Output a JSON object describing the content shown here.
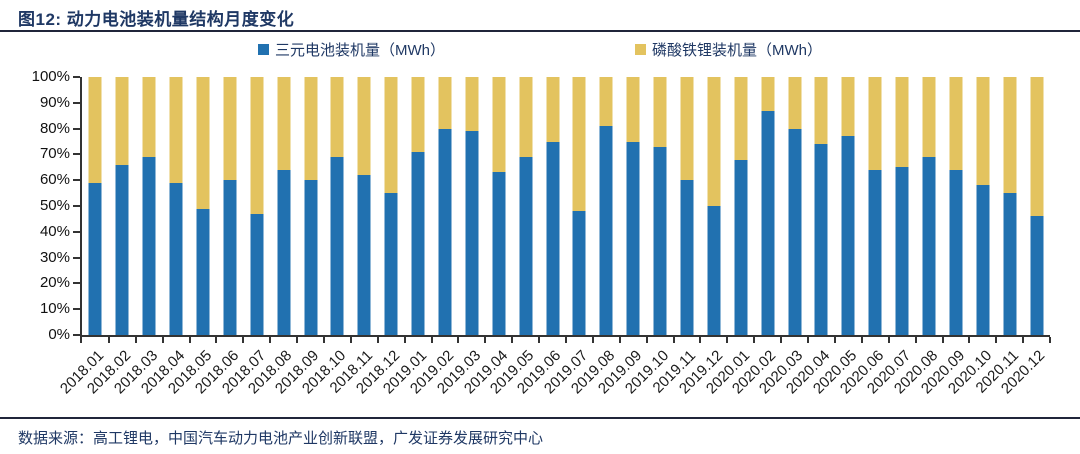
{
  "title": "图12:  动力电池装机量结构月度变化",
  "source": "数据来源：高工锂电，中国汽车动力电池产业创新联盟，广发证券发展研究中心",
  "colors": {
    "ternary_blue": "#2171B0",
    "lfp_yellow": "#E3C35F",
    "navy_text": "#1F3864",
    "axis": "#333333"
  },
  "legend": [
    {
      "label": "三元电池装机量（MWh）",
      "color": "#2171B0"
    },
    {
      "label": "磷酸铁锂装机量（MWh）",
      "color": "#E3C35F"
    }
  ],
  "chart_data": {
    "type": "bar",
    "subtype": "stacked-100-percent",
    "title": "动力电池装机量结构月度变化",
    "xlabel": "",
    "ylabel": "",
    "ylim": [
      0,
      100
    ],
    "grid": false,
    "legend_position": "top",
    "yticks": [
      "0%",
      "10%",
      "20%",
      "30%",
      "40%",
      "50%",
      "60%",
      "70%",
      "80%",
      "90%",
      "100%"
    ],
    "categories": [
      "2018.01",
      "2018.02",
      "2018.03",
      "2018.04",
      "2018.05",
      "2018.06",
      "2018.07",
      "2018.08",
      "2018.09",
      "2018.10",
      "2018.11",
      "2018.12",
      "2019.01",
      "2019.02",
      "2019.03",
      "2019.04",
      "2019.05",
      "2019.06",
      "2019.07",
      "2019.08",
      "2019.09",
      "2019.10",
      "2019.11",
      "2019.12",
      "2020.01",
      "2020.02",
      "2020.03",
      "2020.04",
      "2020.05",
      "2020.06",
      "2020.07",
      "2020.08",
      "2020.09",
      "2020.10",
      "2020.11",
      "2020.12"
    ],
    "series": [
      {
        "name": "三元电池装机量（MWh）",
        "color": "#2171B0",
        "values_pct": [
          59,
          66,
          69,
          59,
          49,
          60,
          47,
          64,
          60,
          69,
          62,
          55,
          71,
          80,
          79,
          63,
          69,
          75,
          48,
          81,
          75,
          73,
          60,
          50,
          68,
          87,
          80,
          74,
          77,
          64,
          65,
          69,
          64,
          58,
          55,
          46
        ]
      },
      {
        "name": "磷酸铁锂装机量（MWh）",
        "color": "#E3C35F",
        "values_pct": [
          41,
          34,
          31,
          41,
          51,
          40,
          53,
          36,
          40,
          31,
          38,
          45,
          29,
          20,
          21,
          37,
          31,
          25,
          52,
          19,
          25,
          27,
          40,
          50,
          32,
          13,
          20,
          26,
          23,
          36,
          35,
          31,
          36,
          42,
          45,
          54
        ]
      }
    ]
  }
}
